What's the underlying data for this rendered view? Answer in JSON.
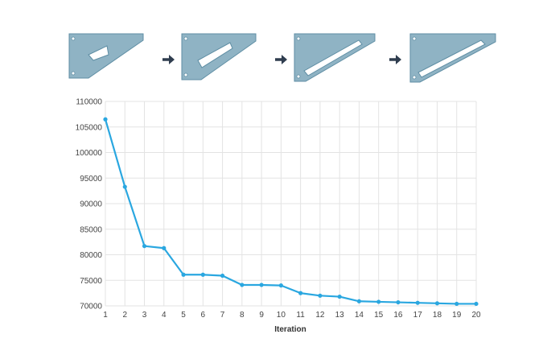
{
  "colors": {
    "series": "#2aa7e0",
    "shape_fill": "#8fb3c4",
    "shape_stroke": "#5f8ea4",
    "arrow": "#2f3d4f",
    "grid": "#e3e3e3"
  },
  "optimization_stages": {
    "count": 4,
    "icon_names": [
      "optimized-shape-iteration-1",
      "optimized-shape-iteration-2",
      "optimized-shape-iteration-3",
      "optimized-shape-iteration-4"
    ],
    "arrow_icon": "right-arrow-icon"
  },
  "chart_data": {
    "type": "line",
    "xlabel": "Iteration",
    "ylabel": "",
    "title": "",
    "categories": [
      "1",
      "2",
      "3",
      "4",
      "5",
      "6",
      "7",
      "8",
      "9",
      "10",
      "11",
      "12",
      "13",
      "14",
      "15",
      "16",
      "17",
      "18",
      "19",
      "20"
    ],
    "series": [
      {
        "values": [
          106500,
          93300,
          81700,
          81300,
          76100,
          76100,
          75900,
          74100,
          74100,
          74000,
          72500,
          72000,
          71800,
          70900,
          70800,
          70700,
          70600,
          70500,
          70400,
          70400
        ]
      }
    ],
    "ylim": [
      70000,
      110000
    ],
    "yticks": [
      "110000",
      "105000",
      "100000",
      "95000",
      "90000",
      "85000",
      "80000",
      "75000",
      "70000"
    ],
    "grid": true,
    "legend": "none"
  }
}
